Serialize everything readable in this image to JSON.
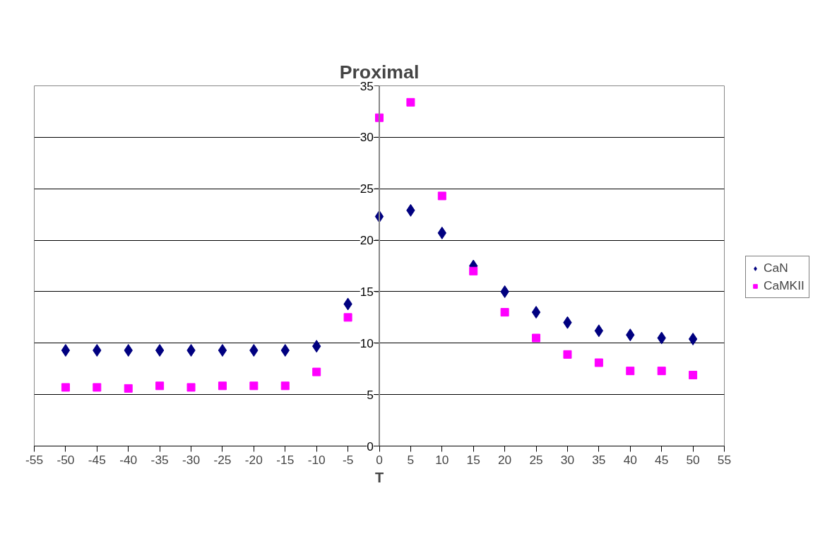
{
  "chart_data": {
    "type": "scatter",
    "title": "Proximal",
    "xlabel": "T",
    "x": [
      -50,
      -45,
      -40,
      -35,
      -30,
      -25,
      -20,
      -15,
      -10,
      -5,
      0,
      5,
      10,
      15,
      20,
      25,
      30,
      35,
      40,
      45,
      50
    ],
    "series": [
      {
        "name": "CaN",
        "color": "#000080",
        "marker": "diamond",
        "values": [
          9.3,
          9.3,
          9.3,
          9.3,
          9.3,
          9.3,
          9.3,
          9.3,
          9.7,
          13.8,
          22.3,
          22.9,
          20.7,
          17.5,
          15.0,
          13.0,
          12.0,
          11.2,
          10.8,
          10.5,
          10.4
        ]
      },
      {
        "name": "CaMKII",
        "color": "#ff00ff",
        "marker": "square",
        "values": [
          5.7,
          5.7,
          5.6,
          5.85,
          5.7,
          5.85,
          5.85,
          5.85,
          7.2,
          12.5,
          31.9,
          33.4,
          24.3,
          17.0,
          13.0,
          10.5,
          8.9,
          8.1,
          7.3,
          7.3,
          6.9
        ]
      }
    ],
    "xlim": [
      -55,
      55
    ],
    "xticks": [
      -55,
      -50,
      -45,
      -40,
      -35,
      -30,
      -25,
      -20,
      -15,
      -10,
      -5,
      0,
      5,
      10,
      15,
      20,
      25,
      30,
      35,
      40,
      45,
      50,
      55
    ],
    "ylim": [
      0,
      35
    ],
    "yticks": [
      0,
      5,
      10,
      15,
      20,
      25,
      30,
      35
    ],
    "grid": "y",
    "legend": "right"
  }
}
